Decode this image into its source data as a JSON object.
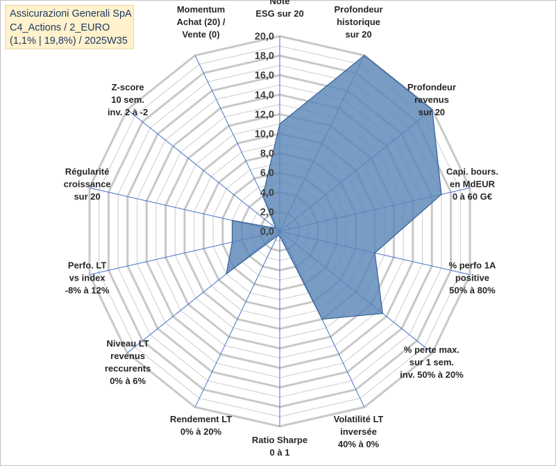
{
  "title": {
    "lines": [
      "Assicurazioni Generali SpA",
      "C4_Actions / 2_EURO",
      "(1,1% | 19,8%) / 2025W35"
    ]
  },
  "colors": {
    "fill": "#5b86b7",
    "stroke": "#2f5f96",
    "grid": "#c8c8c8",
    "spoke": "#4472c4",
    "title_bg": "#fff2cc",
    "title_text": "#1f3864"
  },
  "chart_data": {
    "type": "radar",
    "r_range": [
      0,
      20
    ],
    "r_ticks": [
      "0,0",
      "2,0",
      "4,0",
      "6,0",
      "8,0",
      "10,0",
      "12,0",
      "14,0",
      "16,0",
      "18,0",
      "20,0"
    ],
    "grid": true,
    "categories": [
      [
        "Note",
        "ESG sur 20"
      ],
      [
        "Profondeur",
        "historique",
        "sur 20"
      ],
      [
        "Profondeur",
        "revenus",
        "sur 20"
      ],
      [
        "Capi. bours.",
        "en MdEUR",
        "0 à 60 G€"
      ],
      [
        "% perfo 1A",
        "positive",
        "50% à 80%"
      ],
      [
        "% perte max.",
        "sur 1 sem.",
        "inv. 50% à 20%"
      ],
      [
        "Volatilité LT",
        "inversée",
        "40% à 0%"
      ],
      [
        "Ratio Sharpe",
        "0 à 1"
      ],
      [
        "Rendement LT",
        "0% à 20%"
      ],
      [
        "Niveau LT",
        "revenus",
        "reccurents",
        "0% à 6%"
      ],
      [
        "Perfo. LT",
        "vs index",
        "-8% à 12%"
      ],
      [
        "Régularité",
        "croissance",
        "sur 20"
      ],
      [
        "Z-score",
        "10 sem.",
        "inv. 2 à -2"
      ],
      [
        "Momentum",
        "Achat (20) /",
        "Vente (0)"
      ]
    ],
    "series": [
      {
        "values": [
          11.0,
          20.0,
          20.0,
          17.0,
          10.0,
          13.5,
          10.0,
          0.5,
          0.5,
          7.0,
          5.0,
          5.0,
          0.5,
          4.0
        ]
      }
    ]
  }
}
